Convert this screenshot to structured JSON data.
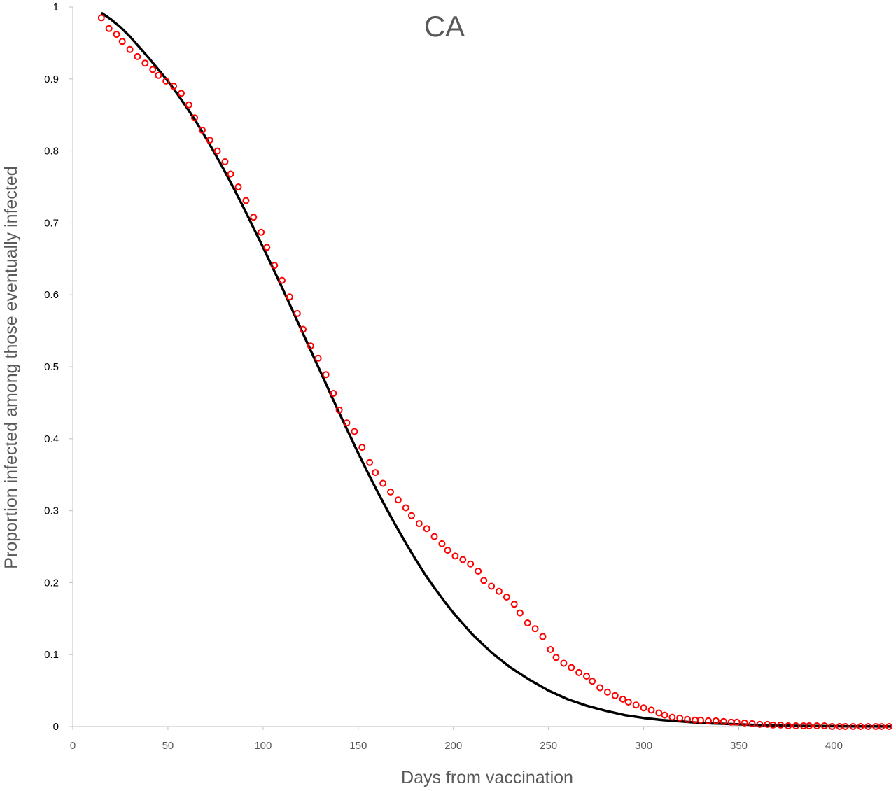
{
  "chart_data": {
    "type": "scatter",
    "title": "CA",
    "xlabel": "Days from vaccination",
    "ylabel": "Proportion infected among those eventually infected",
    "xlim": [
      0,
      430
    ],
    "ylim": [
      0,
      1
    ],
    "x_ticks": [
      0,
      50,
      100,
      150,
      200,
      250,
      300,
      350,
      400
    ],
    "y_ticks": [
      0,
      0.1,
      0.2,
      0.3,
      0.4,
      0.5,
      0.6,
      0.7,
      0.8,
      0.9,
      1
    ],
    "x_tick_labels": [
      "0",
      "50",
      "100",
      "150",
      "200",
      "250",
      "300",
      "350",
      "400"
    ],
    "y_tick_labels": [
      "0",
      "0.1",
      "0.2",
      "0.3",
      "0.4",
      "0.5",
      "0.6",
      "0.7",
      "0.8",
      "0.9",
      "1"
    ],
    "grid": false,
    "series": [
      {
        "kind": "line",
        "color": "#000000",
        "x": [
          15,
          20,
          25,
          30,
          35,
          40,
          45,
          50,
          55,
          60,
          65,
          70,
          75,
          80,
          85,
          90,
          95,
          100,
          105,
          110,
          115,
          120,
          125,
          130,
          135,
          140,
          145,
          150,
          155,
          160,
          165,
          170,
          175,
          180,
          185,
          190,
          195,
          200,
          210,
          220,
          230,
          240,
          250,
          260,
          270,
          280,
          290,
          300,
          310,
          320,
          330,
          340,
          350,
          360,
          370,
          380,
          390,
          400,
          410,
          420,
          430
        ],
        "y": [
          0.992,
          0.983,
          0.972,
          0.959,
          0.944,
          0.929,
          0.913,
          0.897,
          0.879,
          0.86,
          0.84,
          0.818,
          0.795,
          0.771,
          0.746,
          0.72,
          0.693,
          0.666,
          0.638,
          0.61,
          0.581,
          0.552,
          0.523,
          0.494,
          0.465,
          0.436,
          0.408,
          0.38,
          0.353,
          0.327,
          0.302,
          0.278,
          0.255,
          0.233,
          0.212,
          0.193,
          0.175,
          0.158,
          0.128,
          0.103,
          0.082,
          0.065,
          0.05,
          0.038,
          0.029,
          0.022,
          0.016,
          0.012,
          0.009,
          0.007,
          0.005,
          0.004,
          0.003,
          0.002,
          0.0015,
          0.001,
          0.0007,
          0.0005,
          0.0003,
          0.0002,
          0.0001
        ]
      },
      {
        "kind": "scatter",
        "color": "#ff0000",
        "x": [
          15,
          19,
          23,
          26,
          30,
          34,
          38,
          42,
          45,
          49,
          53,
          57,
          61,
          64,
          68,
          72,
          76,
          80,
          83,
          87,
          91,
          95,
          99,
          102,
          106,
          110,
          114,
          118,
          121,
          125,
          129,
          133,
          137,
          140,
          144,
          148,
          152,
          156,
          159,
          163,
          167,
          171,
          175,
          178,
          182,
          186,
          190,
          194,
          197,
          201,
          205,
          209,
          213,
          216,
          220,
          224,
          228,
          232,
          235,
          239,
          243,
          247,
          251,
          254,
          258,
          262,
          266,
          270,
          273,
          277,
          281,
          285,
          289,
          292,
          296,
          300,
          304,
          308,
          311,
          315,
          319,
          323,
          327,
          330,
          334,
          338,
          342,
          346,
          349,
          353,
          357,
          361,
          365,
          368,
          372,
          376,
          380,
          384,
          387,
          391,
          395,
          399,
          403,
          406,
          410,
          414,
          418,
          422,
          425,
          429
        ],
        "y": [
          0.985,
          0.97,
          0.962,
          0.952,
          0.941,
          0.931,
          0.922,
          0.913,
          0.905,
          0.897,
          0.89,
          0.88,
          0.864,
          0.846,
          0.829,
          0.815,
          0.8,
          0.785,
          0.768,
          0.75,
          0.731,
          0.708,
          0.687,
          0.666,
          0.641,
          0.62,
          0.597,
          0.574,
          0.552,
          0.529,
          0.512,
          0.489,
          0.463,
          0.44,
          0.422,
          0.41,
          0.388,
          0.367,
          0.353,
          0.338,
          0.326,
          0.315,
          0.304,
          0.293,
          0.282,
          0.275,
          0.264,
          0.254,
          0.245,
          0.237,
          0.232,
          0.226,
          0.216,
          0.203,
          0.195,
          0.188,
          0.18,
          0.17,
          0.158,
          0.144,
          0.136,
          0.125,
          0.107,
          0.096,
          0.088,
          0.082,
          0.075,
          0.07,
          0.063,
          0.054,
          0.048,
          0.043,
          0.038,
          0.034,
          0.03,
          0.026,
          0.023,
          0.019,
          0.016,
          0.013,
          0.012,
          0.01,
          0.009,
          0.009,
          0.008,
          0.008,
          0.007,
          0.006,
          0.006,
          0.005,
          0.004,
          0.003,
          0.003,
          0.002,
          0.002,
          0.001,
          0.001,
          0.001,
          0.001,
          0.001,
          0.001,
          0.0,
          0.0,
          0.0,
          0.0,
          0.0,
          0.0,
          0.0,
          0.0,
          0.0
        ]
      }
    ]
  }
}
